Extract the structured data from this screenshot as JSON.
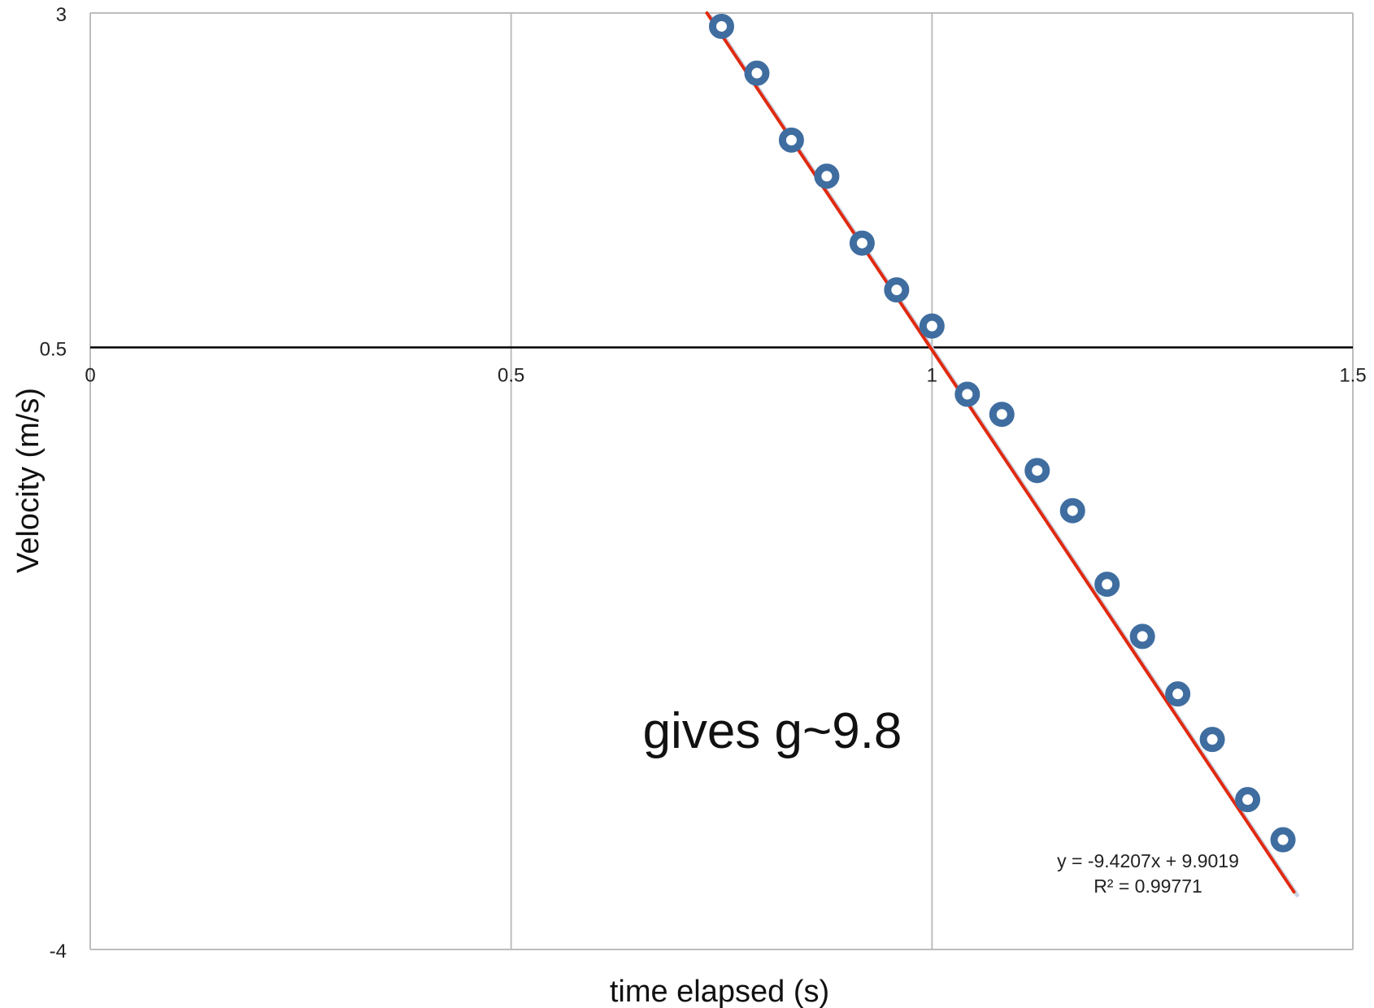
{
  "chart_data": {
    "type": "scatter",
    "title": "",
    "xlabel": "time elapsed (s)",
    "ylabel": "Velocity (m/s)",
    "xlim": [
      0,
      1.5
    ],
    "ylim": [
      -4,
      3
    ],
    "x_ticks": [
      "0",
      "0.5",
      "1",
      "1.5"
    ],
    "y_ticks": [
      "3",
      "0.5",
      "-4"
    ],
    "grid": true,
    "colors": {
      "points": "#3f6da0",
      "trendline": "#e02a10",
      "grid": "#bdbdbd",
      "axis": "#000000"
    },
    "series": [
      {
        "x": [
          0.75,
          0.792,
          0.833,
          0.875,
          0.917,
          0.958,
          1.0,
          1.042,
          1.083,
          1.125,
          1.167,
          1.208,
          1.25,
          1.292,
          1.333,
          1.375,
          1.417
        ],
        "y": [
          2.9,
          2.55,
          2.05,
          1.78,
          1.28,
          0.93,
          0.66,
          0.15,
          0.0,
          -0.42,
          -0.72,
          -1.27,
          -1.66,
          -2.09,
          -2.43,
          -2.88,
          -3.18
        ]
      }
    ],
    "trendline": {
      "slope": -9.4207,
      "intercept": 9.9019
    },
    "annotations": {
      "note": "gives g~9.8",
      "equation": "y = -9.4207x + 9.9019",
      "r_squared": "R² = 0.99771"
    }
  }
}
